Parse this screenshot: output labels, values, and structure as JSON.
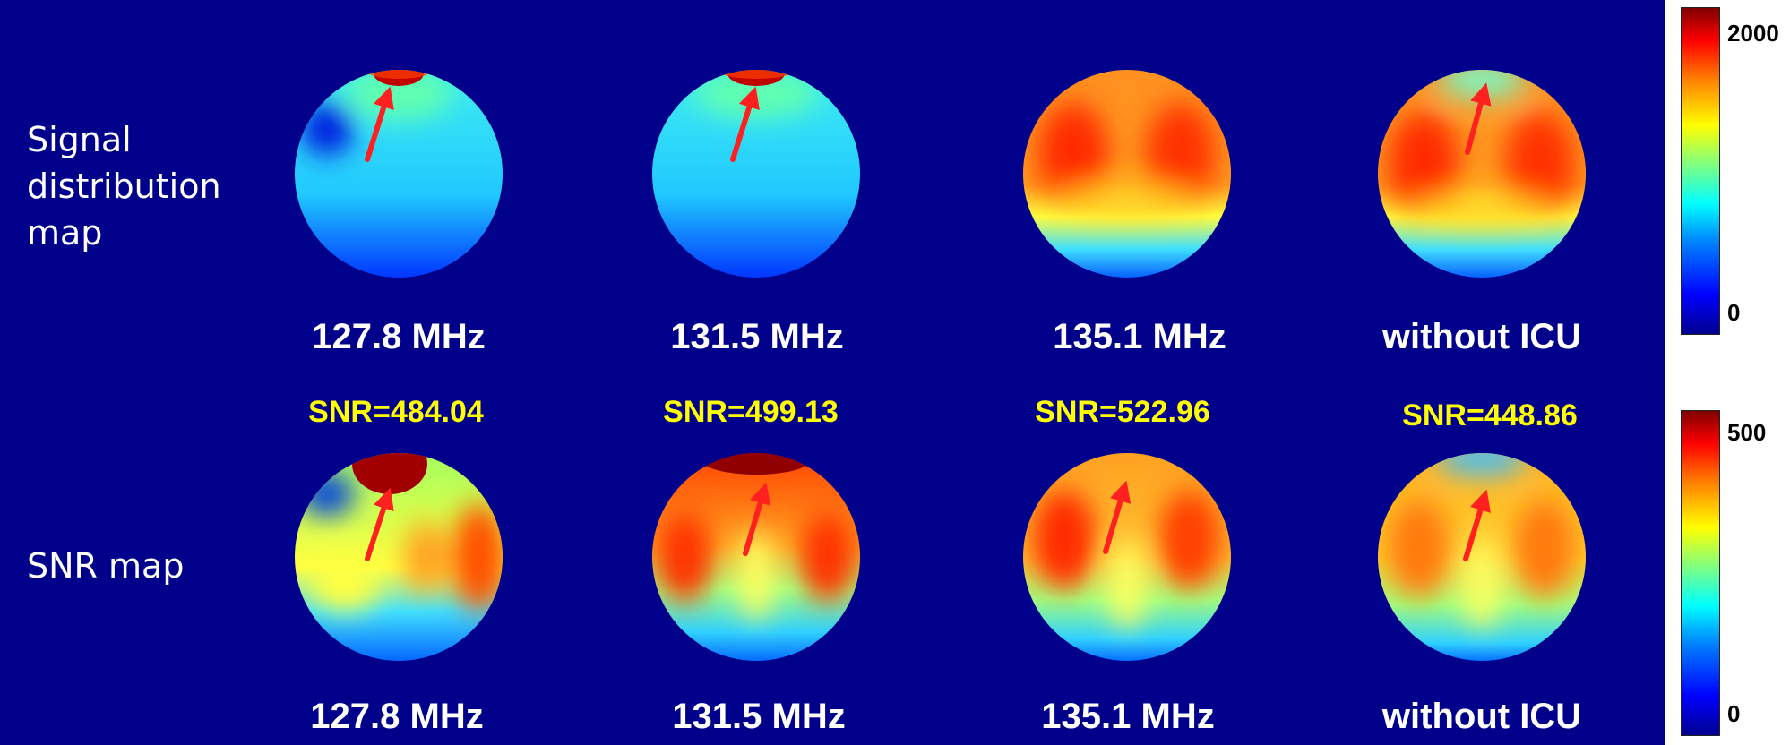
{
  "rows": [
    {
      "label_lines": [
        "Signal",
        "distribution",
        "map"
      ],
      "panels": [
        {
          "freq": "127.8 MHz",
          "snr": "",
          "arrow": true
        },
        {
          "freq": "131.5 MHz",
          "snr": "",
          "arrow": true
        },
        {
          "freq": "135.1 MHz",
          "snr": "",
          "arrow": false
        },
        {
          "freq": "without ICU",
          "snr": "",
          "arrow": true
        }
      ]
    },
    {
      "label_lines": [
        "SNR map"
      ],
      "panels": [
        {
          "freq": "127.8 MHz",
          "snr": "SNR=484.04",
          "arrow": true
        },
        {
          "freq": "131.5 MHz",
          "snr": "SNR=499.13",
          "arrow": true
        },
        {
          "freq": "135.1 MHz",
          "snr": "SNR=522.96",
          "arrow": true
        },
        {
          "freq": "without ICU",
          "snr": "SNR=448.86",
          "arrow": true
        }
      ]
    }
  ],
  "colorbars": [
    {
      "max_label": "2000",
      "min_label": "0"
    },
    {
      "max_label": "500",
      "min_label": "0"
    }
  ],
  "colors": {
    "background": "#00008b",
    "arrow": "#ff2020",
    "freq_text": "#ffffff",
    "snr_text": "#ffff00"
  }
}
